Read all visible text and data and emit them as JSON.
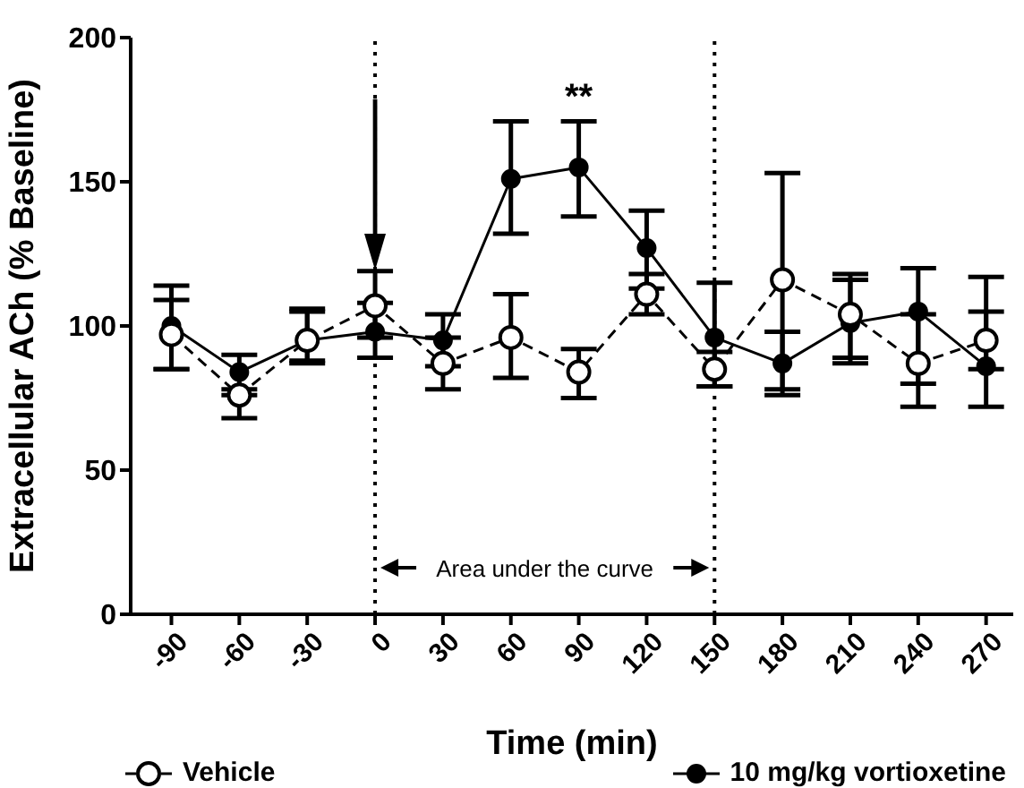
{
  "chart_data": {
    "type": "line",
    "xlabel": "Time (min)",
    "ylabel": "Extracellular ACh  (% Baseline)",
    "x": [
      -90,
      -60,
      -30,
      0,
      30,
      60,
      90,
      120,
      150,
      180,
      210,
      240,
      270
    ],
    "xlim": [
      -108,
      282
    ],
    "xticks": [
      -90,
      -60,
      -30,
      0,
      30,
      60,
      90,
      120,
      150,
      180,
      210,
      240,
      270
    ],
    "ylim": [
      0,
      200
    ],
    "yticks": [
      0,
      50,
      100,
      150,
      200
    ],
    "series": [
      {
        "name": "Vehicle",
        "color": "#000000",
        "line_style": "dashed",
        "marker": "circle",
        "values": [
          97,
          76,
          95,
          107,
          87,
          96,
          84,
          111,
          85,
          116,
          104,
          87,
          95
        ],
        "errors": [
          [
            85,
            109
          ],
          [
            68,
            76
          ],
          [
            87,
            105
          ],
          [
            96,
            119
          ],
          [
            78,
            96
          ],
          [
            82,
            111
          ],
          [
            75,
            92
          ],
          [
            104,
            118
          ],
          [
            79,
            91
          ],
          [
            78,
            153
          ],
          [
            87,
            116
          ],
          [
            72,
            104
          ],
          [
            85,
            105
          ]
        ]
      },
      {
        "name": "10 mg/kg vortioxetine",
        "color": "#000000",
        "line_style": "solid",
        "marker": "circle",
        "values": [
          100,
          84,
          95,
          98,
          95,
          151,
          155,
          127,
          96,
          87,
          101,
          105,
          86
        ],
        "errors": [
          [
            85,
            114
          ],
          [
            78,
            90
          ],
          [
            88,
            106
          ],
          [
            89,
            108
          ],
          [
            86,
            104
          ],
          [
            132,
            171
          ],
          [
            138,
            171
          ],
          [
            113,
            140
          ],
          [
            79,
            115
          ],
          [
            76,
            98
          ],
          [
            89,
            118
          ],
          [
            80,
            120
          ],
          [
            72,
            117
          ]
        ]
      }
    ],
    "ref_lines": [
      {
        "axis": "x",
        "value": 0,
        "line_style": "dotted"
      },
      {
        "axis": "x",
        "value": 150,
        "line_style": "dotted"
      }
    ],
    "annotations": [
      "**",
      "Area under the curve"
    ],
    "legend": "bottom"
  }
}
